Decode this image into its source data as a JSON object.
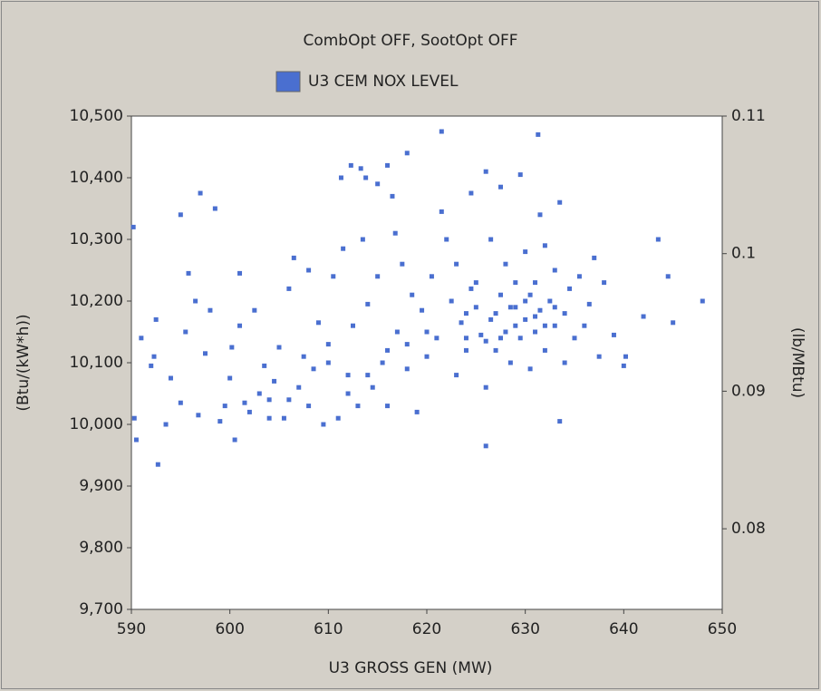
{
  "chart_data": {
    "type": "scatter",
    "title": "CombOpt OFF, SootOpt OFF",
    "xlabel": "U3 GROSS GEN (MW)",
    "ylabel": "(Btu/(kW*h))",
    "y2label": "(lb/MBtu)",
    "xlim": [
      590,
      650
    ],
    "xticks": [
      590,
      600,
      610,
      620,
      630,
      640,
      650
    ],
    "ylim": [
      9700,
      10500
    ],
    "yticks": [
      {
        "value": 9700,
        "label": "9,700"
      },
      {
        "value": 9800,
        "label": "9,800"
      },
      {
        "value": 9900,
        "label": "9,900"
      },
      {
        "value": 10000,
        "label": "10,000"
      },
      {
        "value": 10100,
        "label": "10,100"
      },
      {
        "value": 10200,
        "label": "10,200"
      },
      {
        "value": 10300,
        "label": "10,300"
      },
      {
        "value": 10400,
        "label": "10,400"
      },
      {
        "value": 10500,
        "label": "10,500"
      }
    ],
    "y2lim": [
      0.07414,
      0.11
    ],
    "y2ticks": [
      0.08,
      0.09,
      0.1,
      0.11
    ],
    "x": [
      590.2,
      590.3,
      590.5,
      591,
      592,
      592.3,
      592.5,
      592.7,
      593.5,
      594,
      595,
      595,
      595.5,
      595.8,
      596.5,
      596.8,
      597,
      597.5,
      598,
      598.5,
      599,
      599.5,
      600,
      600.2,
      600.5,
      601,
      601,
      601.5,
      602,
      602.5,
      603,
      603.5,
      604,
      604.5,
      605,
      605.5,
      606,
      606.5,
      607,
      607.5,
      608,
      608.5,
      609,
      609.5,
      610,
      610.5,
      611,
      611.3,
      611.5,
      612,
      612.3,
      612.5,
      613,
      613.3,
      613.5,
      613.8,
      614,
      614.5,
      615,
      615,
      615.5,
      616,
      616,
      616.5,
      616.8,
      617,
      617.5,
      618,
      618,
      618.5,
      619,
      619.5,
      620,
      620.5,
      621,
      621.5,
      621.5,
      622,
      622.5,
      623,
      623,
      623.5,
      624,
      624.5,
      624.5,
      625,
      625.5,
      626,
      626,
      626,
      626.5,
      627,
      627,
      627.5,
      627.5,
      628,
      628,
      628.5,
      629,
      629,
      629.5,
      629.5,
      630,
      630,
      630.5,
      630.5,
      631,
      631,
      631.3,
      631.5,
      631.5,
      632,
      632,
      632.5,
      633,
      633,
      633.5,
      633.5,
      634,
      634,
      634.5,
      635,
      635.5,
      636,
      636.5,
      637,
      637.5,
      638,
      639,
      640,
      640.2,
      642,
      643.5,
      644.5,
      645,
      648,
      624,
      625,
      626.5,
      627.5,
      628.5,
      629,
      630,
      631,
      632,
      633,
      626,
      624,
      620,
      618,
      616,
      614,
      612,
      610,
      608,
      606,
      604
    ],
    "series": [
      {
        "name": "U3 CEM NOX LEVEL",
        "color": "#4a6fd0",
        "values": [
          10320,
          10010,
          9975,
          10140,
          10095,
          10110,
          10170,
          9935,
          10000,
          10075,
          10340,
          10035,
          10150,
          10245,
          10200,
          10015,
          10375,
          10115,
          10185,
          10350,
          10005,
          10030,
          10075,
          10125,
          9975,
          10245,
          10160,
          10035,
          10020,
          10185,
          10050,
          10095,
          10040,
          10070,
          10125,
          10010,
          10220,
          10270,
          10060,
          10110,
          10250,
          10090,
          10165,
          10000,
          10130,
          10240,
          10010,
          10400,
          10285,
          10080,
          10420,
          10160,
          10030,
          10415,
          10300,
          10400,
          10195,
          10060,
          10390,
          10240,
          10100,
          10420,
          10030,
          10370,
          10310,
          10150,
          10260,
          10440,
          10090,
          10210,
          10020,
          10185,
          10110,
          10240,
          10140,
          10475,
          10345,
          10300,
          10200,
          10080,
          10260,
          10165,
          10120,
          10375,
          10220,
          10190,
          10145,
          10410,
          9965,
          10060,
          10300,
          10180,
          10120,
          10385,
          10210,
          10150,
          10260,
          10100,
          10230,
          10190,
          10405,
          10140,
          10170,
          10280,
          10210,
          10090,
          10150,
          10230,
          10470,
          10340,
          10185,
          10120,
          10290,
          10200,
          10160,
          10250,
          10360,
          10005,
          10180,
          10100,
          10220,
          10140,
          10240,
          10160,
          10195,
          10270,
          10110,
          10230,
          10145,
          10095,
          10110,
          10175,
          10300,
          10240,
          10165,
          10200,
          10180,
          10230,
          10170,
          10140,
          10190,
          10160,
          10200,
          10175,
          10160,
          10190,
          10135,
          10140,
          10150,
          10130,
          10120,
          10080,
          10050,
          10100,
          10030,
          10040,
          10010
        ]
      }
    ]
  }
}
